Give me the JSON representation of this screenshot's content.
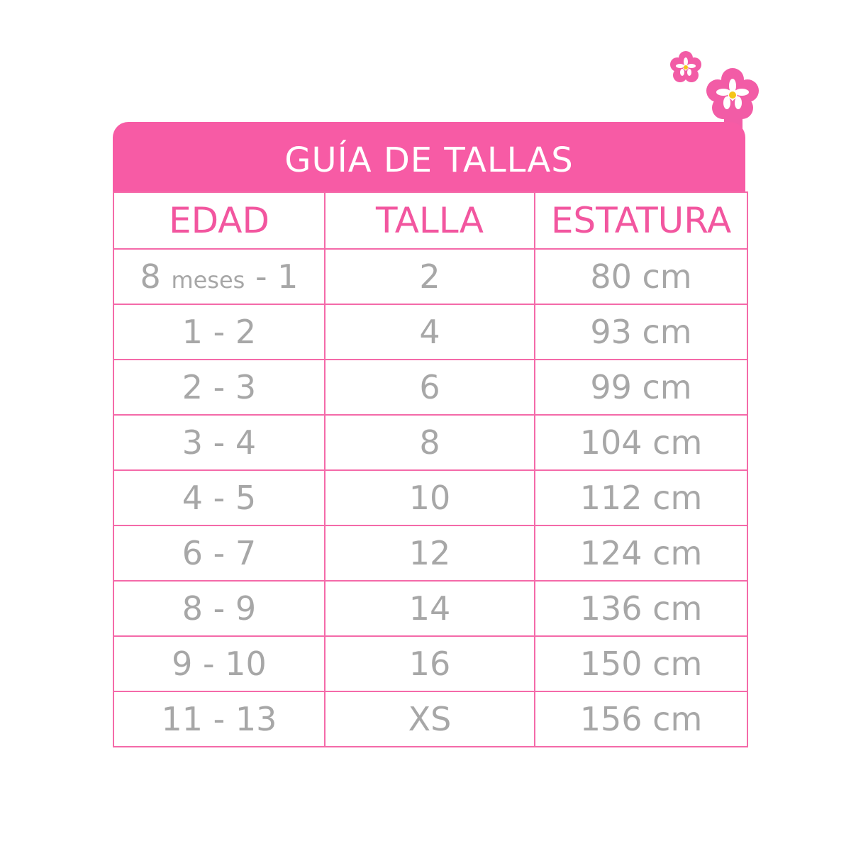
{
  "title": "GUÍA DE TALLAS",
  "headers": [
    "EDAD",
    "TALLA",
    "ESTATURA"
  ],
  "first_row_edad": {
    "start": "8",
    "unit": "meses",
    "end": "- 1"
  },
  "rows": [
    {
      "edad": "8 meses - 1",
      "talla": "2",
      "estatura": "80 cm"
    },
    {
      "edad": "1 - 2",
      "talla": "4",
      "estatura": "93 cm"
    },
    {
      "edad": "2 - 3",
      "talla": "6",
      "estatura": "99 cm"
    },
    {
      "edad": "3 - 4",
      "talla": "8",
      "estatura": "104 cm"
    },
    {
      "edad": "4 - 5",
      "talla": "10",
      "estatura": "112 cm"
    },
    {
      "edad": "6 - 7",
      "talla": "12",
      "estatura": "124 cm"
    },
    {
      "edad": "8 - 9",
      "talla": "14",
      "estatura": "136 cm"
    },
    {
      "edad": "9 - 10",
      "talla": "16",
      "estatura": "150 cm"
    },
    {
      "edad": "11 - 13",
      "talla": "XS",
      "estatura": "156 cm"
    }
  ],
  "colors": {
    "accent": "#f75ba5",
    "text": "#a7a7a7",
    "flower_center": "#f5c518"
  },
  "icons": [
    "flower-icon",
    "flower-icon"
  ]
}
